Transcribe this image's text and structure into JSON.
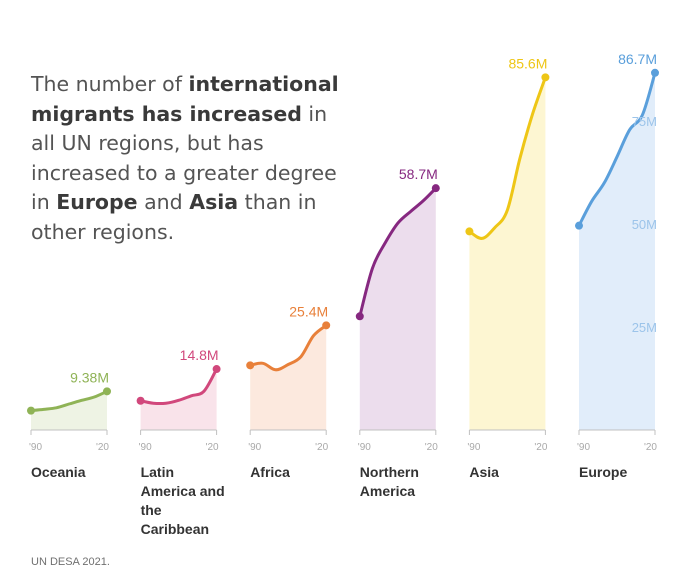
{
  "headline": {
    "t1": "The number of ",
    "b1": "international migrants has increased",
    "t2": " in all UN regions, but has increased to a greater degree in ",
    "b2": "Europe",
    "t3": " and ",
    "b3": "Asia",
    "t4": " than in other regions."
  },
  "source": "UN DESA 2021.",
  "colors": {
    "oceania": "#8fb356",
    "latin": "#d1487c",
    "africa": "#e8803a",
    "northern": "#862880",
    "asia": "#eec616",
    "europe": "#5a9fdb",
    "axis": "#c0c0c0",
    "tick_label": "#a9a9a9"
  },
  "chart_data": {
    "type": "area",
    "x_tick_labels": [
      "'90",
      "'20"
    ],
    "y_axis": {
      "ticks": [
        25,
        50,
        75
      ],
      "tick_labels": [
        "25M",
        "50M",
        "75M"
      ],
      "ylim": [
        0,
        90
      ]
    },
    "series": [
      {
        "name": "Oceania",
        "label_lines": [
          "Oceania"
        ],
        "color": "#8fb356",
        "fill": "#eef3e4",
        "end_label": "9.38M",
        "x": [
          1990,
          1995,
          2000,
          2005,
          2010,
          2015,
          2020
        ],
        "values": [
          4.7,
          5.0,
          5.4,
          6.3,
          7.2,
          8.0,
          9.38
        ]
      },
      {
        "name": "Latin America and the Caribbean",
        "label_lines": [
          "Latin",
          "America and",
          "the",
          "Caribbean"
        ],
        "color": "#d1487c",
        "fill": "#f9e3ea",
        "end_label": "14.8M",
        "x": [
          1990,
          1995,
          2000,
          2005,
          2010,
          2015,
          2020
        ],
        "values": [
          7.1,
          6.5,
          6.5,
          7.2,
          8.3,
          9.4,
          14.8
        ]
      },
      {
        "name": "Africa",
        "label_lines": [
          "Africa"
        ],
        "color": "#e8803a",
        "fill": "#fce9de",
        "end_label": "25.4M",
        "x": [
          1990,
          1995,
          2000,
          2005,
          2010,
          2015,
          2020
        ],
        "values": [
          15.7,
          16.2,
          14.6,
          15.9,
          17.8,
          22.9,
          25.4
        ]
      },
      {
        "name": "Northern America",
        "label_lines": [
          "Northern",
          "America"
        ],
        "color": "#862880",
        "fill": "#ecdded",
        "end_label": "58.7M",
        "x": [
          1990,
          1995,
          2000,
          2005,
          2010,
          2015,
          2020
        ],
        "values": [
          27.6,
          39.3,
          45.4,
          50.2,
          53.0,
          55.6,
          58.7
        ]
      },
      {
        "name": "Asia",
        "label_lines": [
          "Asia"
        ],
        "color": "#eec616",
        "fill": "#fdf6d2",
        "end_label": "85.6M",
        "x": [
          1990,
          1995,
          2000,
          2005,
          2010,
          2015,
          2020
        ],
        "values": [
          48.2,
          46.5,
          49.1,
          53.4,
          66.1,
          76.8,
          85.6
        ]
      },
      {
        "name": "Europe",
        "label_lines": [
          "Europe"
        ],
        "color": "#5a9fdb",
        "fill": "#e1edfa",
        "end_label": "86.7M",
        "x": [
          1990,
          1995,
          2000,
          2005,
          2010,
          2015,
          2020
        ],
        "values": [
          49.6,
          55.5,
          60.0,
          66.3,
          72.9,
          76.4,
          86.7
        ]
      }
    ]
  }
}
